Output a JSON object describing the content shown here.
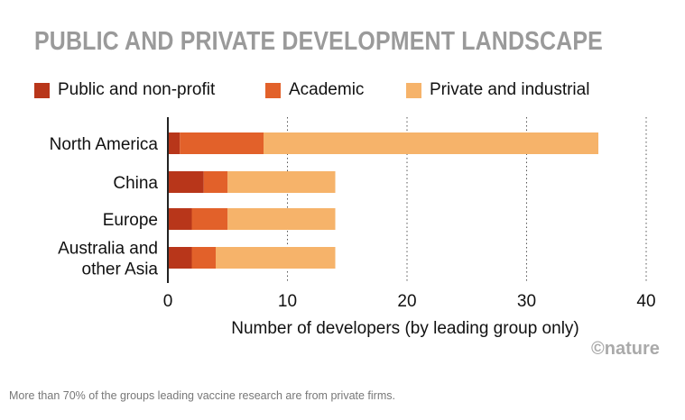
{
  "figure": {
    "title": "PUBLIC AND PRIVATE DEVELOPMENT LANDSCAPE",
    "credit": "©nature"
  },
  "caption": "More than 70% of the groups leading vaccine research are from private firms.",
  "colors": {
    "public": "#b8361a",
    "academic": "#e2612a",
    "private": "#f6b36a",
    "title": "#9a9a9a",
    "axis": "#222222",
    "grid": "#555555"
  },
  "chart_data": {
    "type": "bar",
    "orientation": "horizontal",
    "stacked": true,
    "title": "PUBLIC AND PRIVATE DEVELOPMENT LANDSCAPE",
    "xlabel": "Number of developers (by leading group only)",
    "ylabel": "",
    "categories": [
      "North America",
      "China",
      "Europe",
      "Australia and other Asia"
    ],
    "category_lines": [
      [
        "North America"
      ],
      [
        "China"
      ],
      [
        "Europe"
      ],
      [
        "Australia and",
        "other Asia"
      ]
    ],
    "series": [
      {
        "name": "Public and non-profit",
        "values": [
          1,
          3,
          2,
          2
        ],
        "color": "#b8361a"
      },
      {
        "name": "Academic",
        "values": [
          7,
          2,
          3,
          2
        ],
        "color": "#e2612a"
      },
      {
        "name": "Private and industrial",
        "values": [
          28,
          9,
          9,
          10
        ],
        "color": "#f6b36a"
      }
    ],
    "xlim": [
      0,
      40
    ],
    "xticks": [
      0,
      10,
      20,
      30,
      40
    ],
    "grid": "vertical dotted",
    "legend": "top-left"
  }
}
